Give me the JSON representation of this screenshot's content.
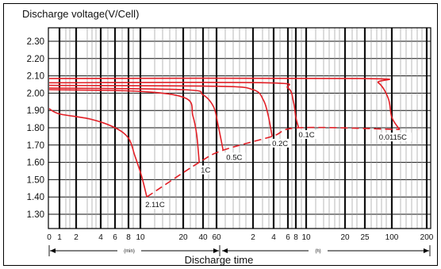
{
  "chart_data": {
    "type": "line",
    "title": "Discharge voltage(V/Cell)",
    "xlabel": "Discharge time",
    "x_scale": "log",
    "y_ticks": [
      "2.30",
      "2.20",
      "2.10",
      "2.00",
      "1.90",
      "1.80",
      "1.70",
      "1.60",
      "1.50",
      "1.40",
      "1.30"
    ],
    "ylim": [
      1.2,
      2.4
    ],
    "x_ticks_min": [
      "0",
      "1",
      "2",
      "4",
      "6",
      "8",
      "10",
      "20",
      "40",
      "60"
    ],
    "x_ticks_h": [
      "2",
      "4",
      "6",
      "8",
      "10",
      "20",
      "25",
      "100",
      "200"
    ],
    "unit_min": "(min)",
    "unit_h": "(h)",
    "grid": true,
    "series": [
      {
        "name": "2.11C",
        "points": [
          [
            0.05,
            1.91
          ],
          [
            1,
            1.88
          ],
          [
            3,
            1.85
          ],
          [
            6,
            1.8
          ],
          [
            8,
            1.74
          ],
          [
            9,
            1.64
          ],
          [
            10.2,
            1.52
          ],
          [
            11.1,
            1.4
          ]
        ]
      },
      {
        "name": "1C",
        "points": [
          [
            0.05,
            2.02
          ],
          [
            10,
            2.01
          ],
          [
            22,
            1.97
          ],
          [
            28,
            1.87
          ],
          [
            32,
            1.76
          ],
          [
            35,
            1.6
          ]
        ]
      },
      {
        "name": "0.5C",
        "points": [
          [
            0.05,
            2.03
          ],
          [
            20,
            2.02
          ],
          [
            40,
            1.99
          ],
          [
            55,
            1.92
          ],
          [
            62,
            1.81
          ],
          [
            68,
            1.67
          ]
        ]
      },
      {
        "name": "0.2C",
        "points": [
          [
            0.05,
            2.045
          ],
          [
            60,
            2.04
          ],
          [
            120,
            2.02
          ],
          [
            170,
            1.96
          ],
          [
            200,
            1.87
          ],
          [
            228,
            1.75
          ]
        ]
      },
      {
        "name": "0.1C",
        "points": [
          [
            0.05,
            2.06
          ],
          [
            180,
            2.06
          ],
          [
            360,
            2.03
          ],
          [
            440,
            1.95
          ],
          [
            480,
            1.86
          ],
          [
            510,
            1.8
          ]
        ]
      },
      {
        "name": "0.0115C",
        "points": [
          [
            0.05,
            2.085
          ],
          [
            1440,
            2.085
          ],
          [
            3000,
            2.06
          ],
          [
            5000,
            1.97
          ],
          [
            6000,
            1.86
          ],
          [
            7000,
            1.79
          ]
        ]
      }
    ],
    "cutoff_line": {
      "style": "dashed",
      "points": [
        [
          11.1,
          1.4
        ],
        [
          35,
          1.6
        ],
        [
          68,
          1.67
        ],
        [
          228,
          1.75
        ],
        [
          510,
          1.8
        ],
        [
          7000,
          1.79
        ]
      ]
    },
    "colors": {
      "curves": "#e21f26",
      "grid": "#111111",
      "minor_grid": "#9a9a9a",
      "frame": "#000000"
    }
  }
}
